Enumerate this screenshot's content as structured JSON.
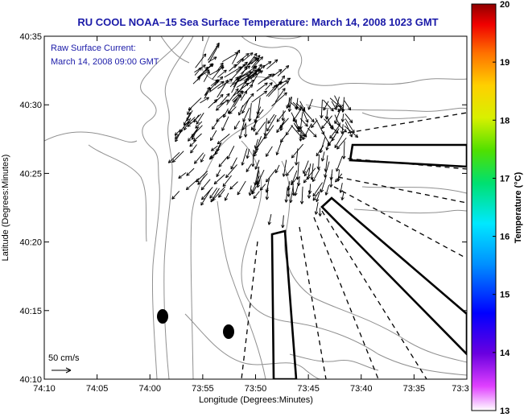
{
  "title": "RU COOL  NOAA–15  Sea Surface Temperature:  March 14, 2008 1023 GMT",
  "annotation": {
    "line1": "Raw Surface Current:",
    "line2": "March 14, 2008 09:00 GMT"
  },
  "scale_label": "50 cm/s",
  "axes": {
    "xlabel": "Longitude (Degrees:Minutes)",
    "ylabel": "Latitude (Degrees:Minutes)",
    "x_ticks": [
      "74:10",
      "74:05",
      "74:00",
      "73:55",
      "73:50",
      "73:45",
      "73:40",
      "73:35",
      "73:3"
    ],
    "y_ticks": [
      "40:35",
      "40:30",
      "40:25",
      "40:20",
      "40:15",
      "40:10"
    ]
  },
  "colorbar": {
    "label": "Temperature (°C)",
    "ticks": [
      "20",
      "19",
      "18",
      "17",
      "16",
      "15",
      "14",
      "13"
    ],
    "min": 13,
    "max": 20
  },
  "colors": {
    "title": "#1a1aa8",
    "annotation": "#1a1aa8",
    "contour": "#909090"
  }
}
